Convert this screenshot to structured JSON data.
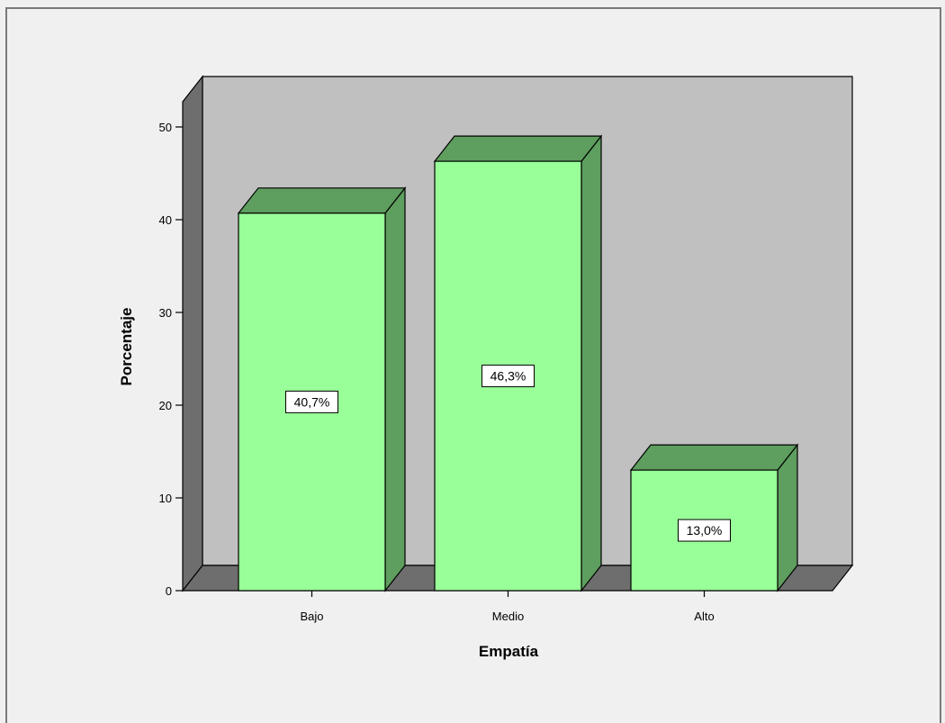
{
  "chart_data": {
    "type": "bar",
    "style": "3d",
    "categories": [
      "Bajo",
      "Medio",
      "Alto"
    ],
    "values": [
      40.7,
      46.3,
      13.0
    ],
    "data_labels": [
      "40,7%",
      "46,3%",
      "13,0%"
    ],
    "xlabel": "Empatía",
    "ylabel": "Porcentaje",
    "ylim": [
      0,
      50
    ],
    "yticks": [
      0,
      10,
      20,
      30,
      40,
      50
    ],
    "grid": false,
    "legend": "none"
  },
  "colors": {
    "bar_front": "#99ff99",
    "bar_top": "#5e9e5e",
    "bar_side": "#5e9e5e",
    "back_wall": "#c0c0c0",
    "left_wall": "#6e6e6e",
    "floor": "#6e6e6e",
    "background": "#f0f0f0"
  }
}
